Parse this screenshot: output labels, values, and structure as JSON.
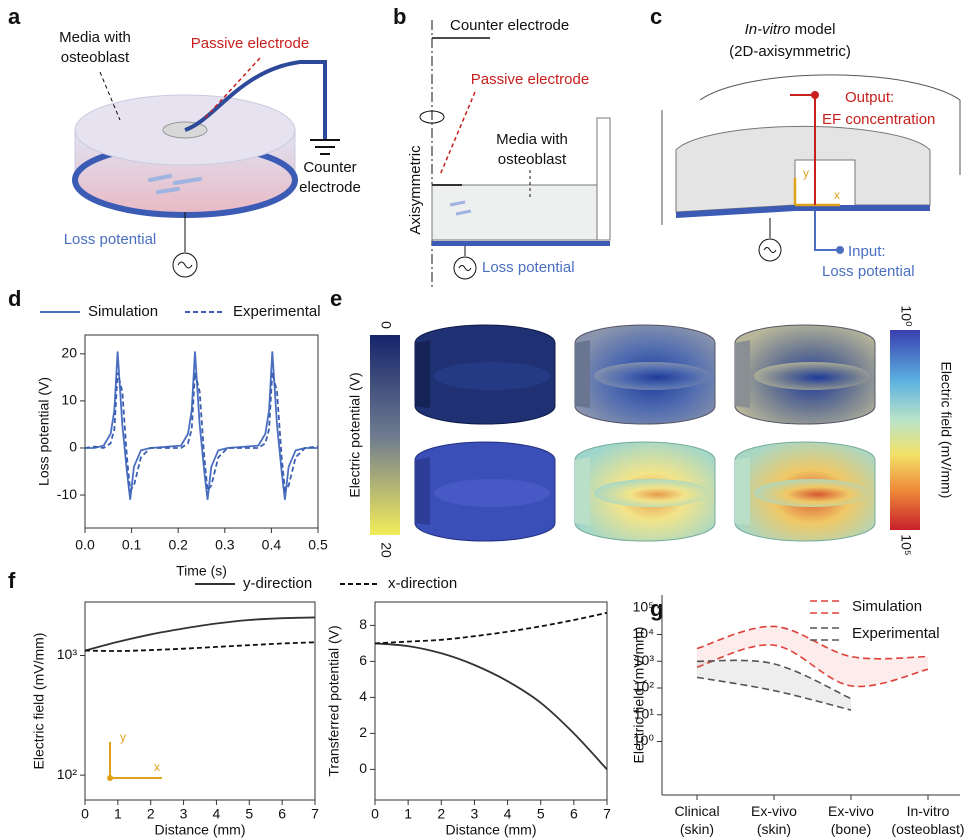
{
  "figure": {
    "a": {
      "letter": "a",
      "media": [
        "Media with",
        "osteoblast"
      ],
      "passive": "Passive electrode",
      "counter": [
        "Counter",
        "electrode"
      ],
      "loss": "Loss potential"
    },
    "b": {
      "letter": "b",
      "counter": "Counter electrode",
      "passive": "Passive electrode",
      "media": [
        "Media with",
        "osteoblast"
      ],
      "axis": "Axisymmetric",
      "loss": "Loss potential"
    },
    "c": {
      "letter": "c",
      "title": [
        "In-vitro",
        " model"
      ],
      "subtitle": "(2D-axisymmetric)",
      "output": [
        "Output:",
        "EF concentration"
      ],
      "input": [
        "Input:",
        "Loss potential"
      ],
      "y": "y",
      "x": "x"
    },
    "d": {
      "letter": "d"
    },
    "e": {
      "letter": "e",
      "potential_label": "Electric potential (V)",
      "potential_ticks": [
        0,
        20
      ],
      "field_label": "Electric field (mV/mm)",
      "field_ticks": [
        {
          "value": 1,
          "label": "10⁰"
        },
        {
          "value": 100000,
          "label": "10⁵"
        }
      ]
    },
    "f": {
      "letter": "f",
      "inset": {
        "y": "y",
        "x": "x"
      }
    },
    "g": {
      "letter": "g"
    }
  },
  "chart_data": [
    {
      "type": "line",
      "xlabel": "Time (s)",
      "ylabel": "Loss potential (V)",
      "legend": "above",
      "xlim": [
        0,
        0.5
      ],
      "xticks": [
        {
          "value": 0,
          "label": "0.0"
        },
        0.1,
        0.2,
        0.3,
        0.4,
        0.5
      ],
      "ylim": [
        -17,
        24
      ],
      "yticks": [
        -10,
        0,
        10,
        20
      ],
      "x": [
        0,
        0.02,
        0.04,
        0.055,
        0.063,
        0.07,
        0.08,
        0.09,
        0.097,
        0.105,
        0.12,
        0.14,
        0.206,
        0.221,
        0.229,
        0.236,
        0.246,
        0.256,
        0.263,
        0.271,
        0.286,
        0.306,
        0.372,
        0.387,
        0.395,
        0.402,
        0.412,
        0.422,
        0.429,
        0.437,
        0.452,
        0.472,
        0.5
      ],
      "series": [
        {
          "name": "Simulation",
          "color": "#4a6fc0",
          "dash": false,
          "values": [
            0,
            0,
            0.5,
            3,
            8,
            20.5,
            5,
            -5,
            -11,
            -4,
            -0.5,
            0,
            0.5,
            3,
            8,
            20.5,
            5,
            -5,
            -11,
            -4,
            -0.5,
            0,
            0.5,
            3,
            8,
            20.5,
            5,
            -5,
            -11,
            -4,
            -0.5,
            0,
            0
          ]
        },
        {
          "name": "Experimental",
          "color": "#3a5fb0",
          "dash": true,
          "values": [
            0,
            0.3,
            0,
            1,
            4,
            16,
            12,
            -2,
            -9,
            -8,
            -2,
            0,
            0,
            1,
            4,
            16,
            12,
            -2,
            -9,
            -8,
            -2,
            0,
            0,
            1,
            4,
            16,
            12,
            -2,
            -9,
            -8,
            -2,
            0,
            0.3
          ]
        }
      ]
    },
    {
      "type": "line",
      "xlabel": "Distance (mm)",
      "ylabel": "Electric field (mV/mm)",
      "legend": "above",
      "smooth": true,
      "xlim": [
        0,
        7
      ],
      "xticks": [
        0,
        1,
        2,
        3,
        4,
        5,
        6,
        7
      ],
      "yscale": "log",
      "ylim": [
        62,
        2800
      ],
      "yticks": [
        {
          "value": 100,
          "label": "10²"
        },
        {
          "value": 1000,
          "label": "10³"
        }
      ],
      "x": [
        0,
        1,
        2,
        3,
        4,
        5,
        6,
        7
      ],
      "series": [
        {
          "name": "y-direction",
          "color": "#333333",
          "dash": false,
          "values": [
            1100,
            1300,
            1500,
            1680,
            1850,
            1980,
            2050,
            2080
          ]
        },
        {
          "name": "x-direction",
          "color": "#111111",
          "dash": true,
          "values": [
            1100,
            1090,
            1110,
            1140,
            1180,
            1220,
            1260,
            1290
          ]
        }
      ]
    },
    {
      "type": "line",
      "xlabel": "Distance (mm)",
      "ylabel": "Transferred potential (V)",
      "smooth": true,
      "xlim": [
        0,
        7
      ],
      "xticks": [
        0,
        1,
        2,
        3,
        4,
        5,
        6,
        7
      ],
      "ylim": [
        -1.7,
        9.3
      ],
      "yticks": [
        0,
        2,
        4,
        6,
        8
      ],
      "x": [
        0,
        1,
        2,
        3,
        4,
        5,
        6,
        7
      ],
      "series": [
        {
          "color": "#333333",
          "dash": false,
          "values": [
            7,
            6.85,
            6.45,
            5.8,
            4.9,
            3.7,
            2.0,
            0
          ]
        },
        {
          "color": "#111111",
          "dash": true,
          "values": [
            7,
            7.1,
            7.2,
            7.4,
            7.65,
            7.95,
            8.3,
            8.7
          ]
        }
      ]
    },
    {
      "type": "range",
      "ylabel": "Electric field (mV/mm)",
      "legend": "upper right",
      "smooth": true,
      "categories": [
        "Clinical (skin)",
        "Ex-vivo (skin)",
        "Ex-vivo (bone)",
        "In-vitro (osteoblast)"
      ],
      "yscale": "log",
      "ylim": [
        0.01,
        300000
      ],
      "yticks": [
        {
          "value": 1,
          "label": "10⁰"
        },
        {
          "value": 10,
          "label": "10¹"
        },
        {
          "value": 100,
          "label": "10²"
        },
        {
          "value": 1000,
          "label": "10³"
        },
        {
          "value": 10000,
          "label": "10⁴"
        },
        {
          "value": 100000,
          "label": "10⁵"
        }
      ],
      "series": [
        {
          "name": "Simulation",
          "color": "#e0403a",
          "upper": [
            3000,
            20000,
            1500,
            1500
          ],
          "lower": [
            600,
            4000,
            120,
            500
          ]
        },
        {
          "name": "Experimental",
          "color": "#555555",
          "upper": [
            1000,
            800,
            40,
            null
          ],
          "lower": [
            250,
            80,
            15,
            null
          ]
        }
      ]
    }
  ]
}
